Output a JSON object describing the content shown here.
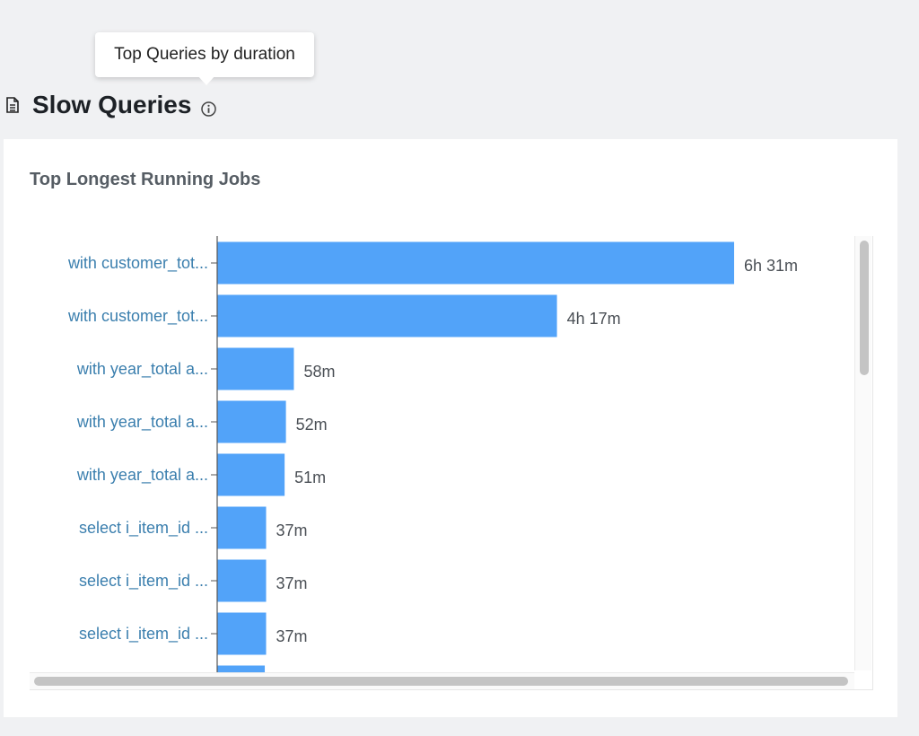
{
  "tooltip": {
    "text": "Top Queries by duration"
  },
  "header": {
    "title": "Slow Queries"
  },
  "card": {
    "title": "Top Longest Running Jobs"
  },
  "colors": {
    "bar": "#52a3f9",
    "tick_label": "#3b7fae",
    "value_label": "#4a4f55"
  },
  "chart_data": {
    "type": "bar",
    "orientation": "horizontal",
    "title": "Top Longest Running Jobs",
    "value_unit": "minutes",
    "categories": [
      "with customer_tot...",
      "with customer_tot...",
      "with year_total a...",
      "with year_total a...",
      "with year_total a...",
      "select i_item_id ...",
      "select i_item_id ...",
      "select i_item_id ...",
      ""
    ],
    "values": [
      391,
      257,
      58,
      52,
      51,
      37,
      37,
      37,
      36
    ],
    "value_labels": [
      "6h 31m",
      "4h 17m",
      "58m",
      "52m",
      "51m",
      "37m",
      "37m",
      "37m",
      ""
    ],
    "xlim": [
      0,
      391
    ],
    "grid": false,
    "legend": "none"
  }
}
